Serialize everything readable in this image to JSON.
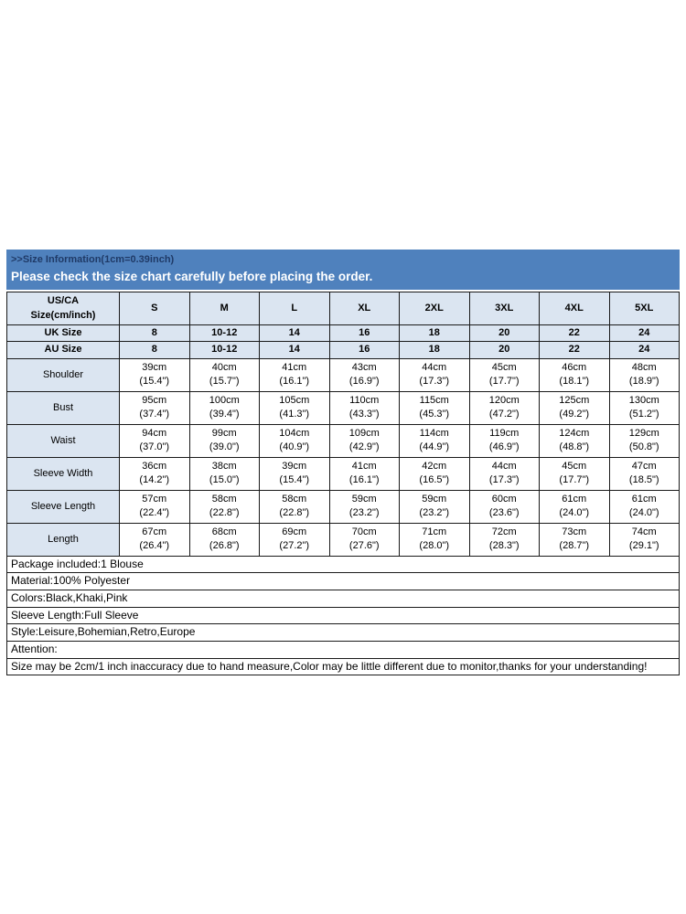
{
  "header": {
    "title": ">>Size Information(1cm=0.39inch)",
    "subtitle": "Please check the size chart carefully before placing the order."
  },
  "size_chart": {
    "corner_label": "US/CA\nSize(cm/inch)",
    "size_columns": [
      "S",
      "M",
      "L",
      "XL",
      "2XL",
      "3XL",
      "4XL",
      "5XL"
    ],
    "region_rows": [
      {
        "label": "UK Size",
        "values": [
          "8",
          "10-12",
          "14",
          "16",
          "18",
          "20",
          "22",
          "24"
        ]
      },
      {
        "label": "AU Size",
        "values": [
          "8",
          "10-12",
          "14",
          "16",
          "18",
          "20",
          "22",
          "24"
        ]
      }
    ],
    "measurement_rows": [
      {
        "label": "Shoulder",
        "cm": [
          "39cm",
          "40cm",
          "41cm",
          "43cm",
          "44cm",
          "45cm",
          "46cm",
          "48cm"
        ],
        "inch": [
          "(15.4\")",
          "(15.7\")",
          "(16.1\")",
          "(16.9\")",
          "(17.3\")",
          "(17.7\")",
          "(18.1\")",
          "(18.9\")"
        ]
      },
      {
        "label": "Bust",
        "cm": [
          "95cm",
          "100cm",
          "105cm",
          "110cm",
          "115cm",
          "120cm",
          "125cm",
          "130cm"
        ],
        "inch": [
          "(37.4\")",
          "(39.4\")",
          "(41.3\")",
          "(43.3\")",
          "(45.3\")",
          "(47.2\")",
          "(49.2\")",
          "(51.2\")"
        ]
      },
      {
        "label": "Waist",
        "cm": [
          "94cm",
          "99cm",
          "104cm",
          "109cm",
          "114cm",
          "119cm",
          "124cm",
          "129cm"
        ],
        "inch": [
          "(37.0\")",
          "(39.0\")",
          "(40.9\")",
          "(42.9\")",
          "(44.9\")",
          "(46.9\")",
          "(48.8\")",
          "(50.8\")"
        ]
      },
      {
        "label": "Sleeve Width",
        "cm": [
          "36cm",
          "38cm",
          "39cm",
          "41cm",
          "42cm",
          "44cm",
          "45cm",
          "47cm"
        ],
        "inch": [
          "(14.2\")",
          "(15.0\")",
          "(15.4\")",
          "(16.1\")",
          "(16.5\")",
          "(17.3\")",
          "(17.7\")",
          "(18.5\")"
        ]
      },
      {
        "label": "Sleeve Length",
        "cm": [
          "57cm",
          "58cm",
          "58cm",
          "59cm",
          "59cm",
          "60cm",
          "61cm",
          "61cm"
        ],
        "inch": [
          "(22.4\")",
          "(22.8\")",
          "(22.8\")",
          "(23.2\")",
          "(23.2\")",
          "(23.6\")",
          "(24.0\")",
          "(24.0\")"
        ]
      },
      {
        "label": "Length",
        "cm": [
          "67cm",
          "68cm",
          "69cm",
          "70cm",
          "71cm",
          "72cm",
          "73cm",
          "74cm"
        ],
        "inch": [
          "(26.4\")",
          "(26.8\")",
          "(27.2\")",
          "(27.6\")",
          "(28.0\")",
          "(28.3\")",
          "(28.7\")",
          "(29.1\")"
        ]
      }
    ]
  },
  "notes": {
    "lines": [
      "Package included:1 Blouse",
      "Material:100% Polyester",
      "Colors:Black,Khaki,Pink",
      "Sleeve Length:Full Sleeve",
      "Style:Leisure,Bohemian,Retro,Europe",
      "Attention:",
      "Size may be 2cm/1 inch inaccuracy due to hand measure,Color may be little different due to monitor,thanks for your understanding!"
    ]
  },
  "colors": {
    "band_blue": "#4f81bd",
    "title_text": "#1f3a67",
    "subtitle_text": "#ffffff",
    "cell_blue": "#dbe5f1",
    "border": "#1a1a1a"
  }
}
